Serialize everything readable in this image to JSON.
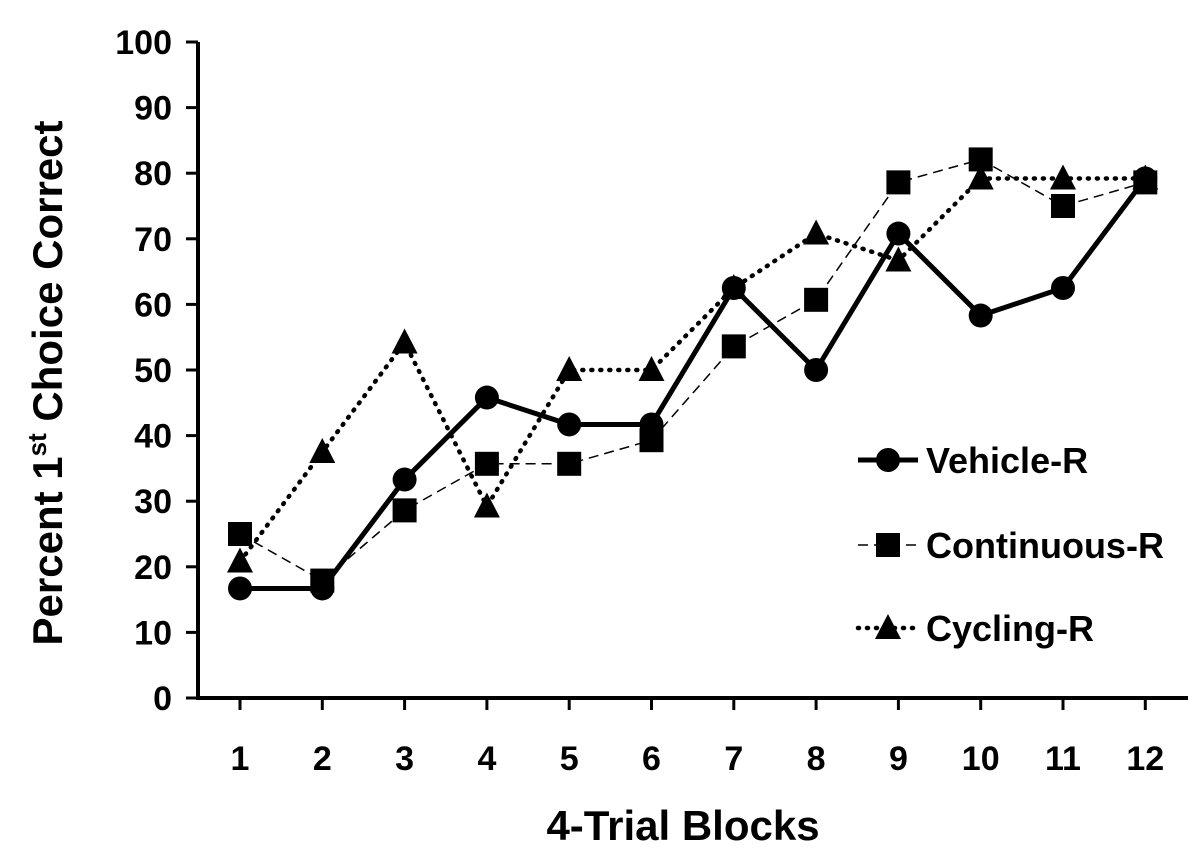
{
  "chart_data": {
    "type": "line",
    "title": "",
    "xlabel": "4-Trial Blocks",
    "ylabel_parts": {
      "pre": "Percent 1",
      "sup": "st",
      "post": " Choice Correct"
    },
    "x": [
      1,
      2,
      3,
      4,
      5,
      6,
      7,
      8,
      9,
      10,
      11,
      12
    ],
    "x_tick_labels": [
      "1",
      "2",
      "3",
      "4",
      "5",
      "6",
      "7",
      "8",
      "9",
      "10",
      "11",
      "12"
    ],
    "ylim": [
      0,
      100
    ],
    "y_ticks": [
      0,
      10,
      20,
      30,
      40,
      50,
      60,
      70,
      80,
      90,
      100
    ],
    "legend_position": "right",
    "series": [
      {
        "name": "Vehicle-R",
        "marker": "circle",
        "line": "solid",
        "values": [
          16.7,
          16.7,
          33.3,
          45.8,
          41.7,
          41.7,
          62.5,
          50.0,
          70.8,
          58.3,
          62.5,
          79.2
        ]
      },
      {
        "name": "Continuous-R",
        "marker": "square",
        "line": "dashed",
        "values": [
          25.0,
          17.9,
          28.6,
          35.7,
          35.7,
          39.3,
          53.6,
          60.7,
          78.6,
          82.1,
          75.0,
          78.6
        ]
      },
      {
        "name": "Cycling-R",
        "marker": "triangle",
        "line": "dotted",
        "values": [
          20.8,
          37.5,
          54.2,
          29.2,
          50.0,
          50.0,
          62.5,
          70.8,
          66.7,
          79.2,
          79.2,
          79.2
        ]
      }
    ]
  }
}
